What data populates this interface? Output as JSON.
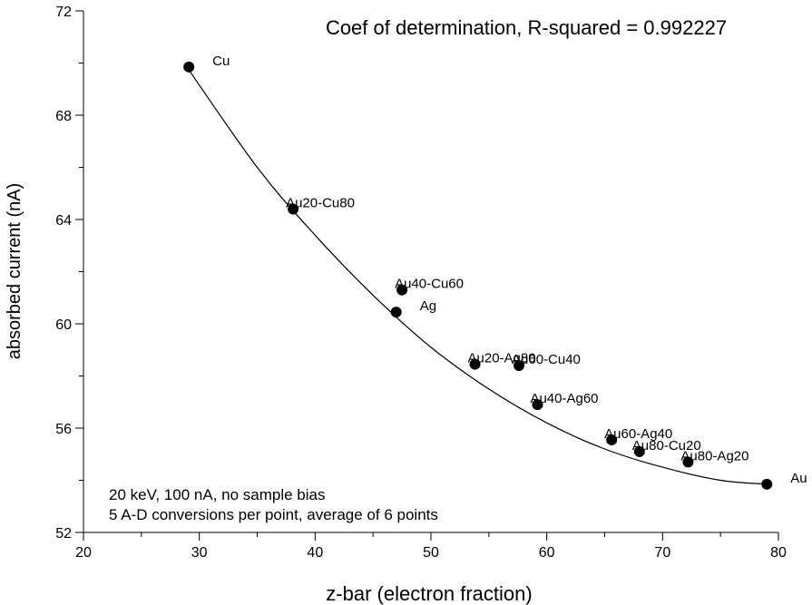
{
  "chart_data": {
    "type": "scatter",
    "title": "",
    "annotation_top": "Coef of determination, R-squared = 0.992227",
    "annotation_bottom": [
      "20 keV, 100 nA, no sample bias",
      "5 A-D conversions per point, average of 6 points"
    ],
    "xlabel": "z-bar (electron fraction)",
    "ylabel": "absorbed current (nA)",
    "xlim": [
      20,
      80
    ],
    "ylim": [
      52,
      72
    ],
    "xticks": [
      20,
      30,
      40,
      50,
      60,
      70,
      80
    ],
    "yticks": [
      52,
      56,
      60,
      64,
      68,
      72
    ],
    "grid": false,
    "points": [
      {
        "label": "Cu",
        "x": 29.1,
        "y": 69.85
      },
      {
        "label": "Au20-Cu80",
        "x": 38.1,
        "y": 64.4
      },
      {
        "label": "Ag",
        "x": 47.0,
        "y": 60.45
      },
      {
        "label": "Au40-Cu60",
        "x": 47.5,
        "y": 61.3
      },
      {
        "label": "Au20-Ag80",
        "x": 53.8,
        "y": 58.45
      },
      {
        "label": "Au60-Cu40",
        "x": 57.6,
        "y": 58.4
      },
      {
        "label": "Au40-Ag60",
        "x": 59.2,
        "y": 56.9
      },
      {
        "label": "Au60-Ag40",
        "x": 65.6,
        "y": 55.55
      },
      {
        "label": "Au80-Cu20",
        "x": 68.0,
        "y": 55.1
      },
      {
        "label": "Au80-Ag20",
        "x": 72.2,
        "y": 54.7
      },
      {
        "label": "Au",
        "x": 79.0,
        "y": 53.85
      }
    ],
    "fit": {
      "type": "polynomial",
      "x": [
        29,
        35,
        40,
        45,
        50,
        55,
        60,
        65,
        70,
        75,
        79
      ],
      "y": [
        69.8,
        66.0,
        63.4,
        61.1,
        59.1,
        57.5,
        56.2,
        55.2,
        54.5,
        54.0,
        53.85
      ]
    }
  }
}
